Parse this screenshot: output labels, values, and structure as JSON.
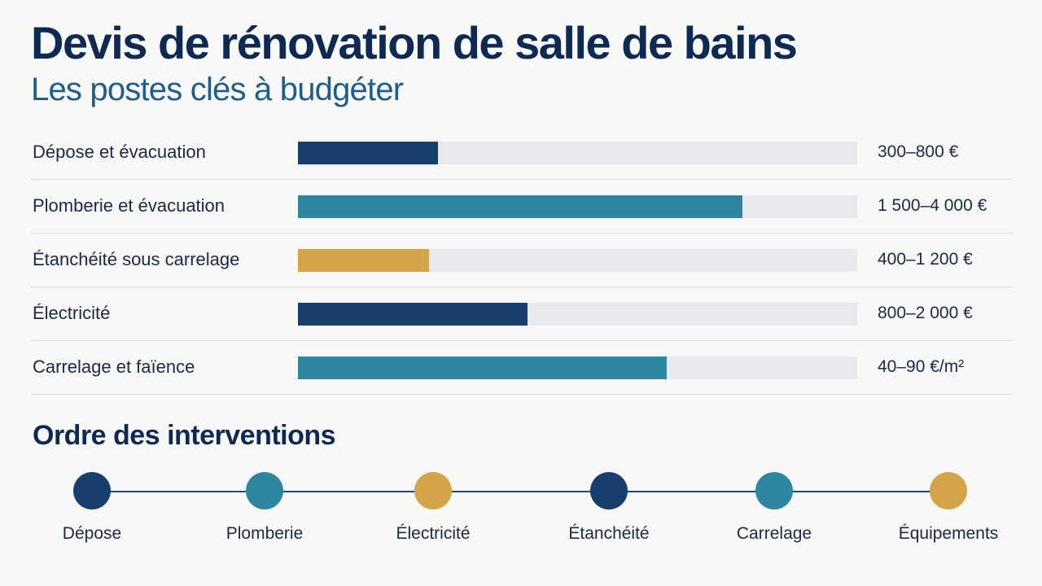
{
  "title": "Devis de rénovation de salle de bains",
  "subtitle": "Les postes clés à budgéter",
  "colors": {
    "navy": "#173f6e",
    "teal": "#2f86a0",
    "gold": "#d4a448",
    "track": "#e8e9ec"
  },
  "chart_data": {
    "type": "bar",
    "orientation": "horizontal",
    "categories": [
      "Dépose et évacuation",
      "Plomberie et évacuation",
      "Étanchéité sous carrelage",
      "Électricité",
      "Carrelage et faïence"
    ],
    "value_labels": [
      "300–800 €",
      "1 500–4 000 €",
      "400–1 200 €",
      "800–2 000 €",
      "40–90 €/m²"
    ],
    "fill_fractions": [
      0.25,
      0.795,
      0.235,
      0.41,
      0.66
    ],
    "bar_colors": [
      "#173f6e",
      "#2f86a0",
      "#d4a448",
      "#173f6e",
      "#2f86a0"
    ]
  },
  "timeline": {
    "title": "Ordre des interventions",
    "steps": [
      {
        "label": "Dépose",
        "color": "#173f6e"
      },
      {
        "label": "Plomberie",
        "color": "#2f86a0"
      },
      {
        "label": "Électricité",
        "color": "#d4a448"
      },
      {
        "label": "Étanchéité",
        "color": "#173f6e"
      },
      {
        "label": "Carrelage",
        "color": "#2f86a0"
      },
      {
        "label": "Équipements",
        "color": "#d4a448"
      }
    ]
  }
}
